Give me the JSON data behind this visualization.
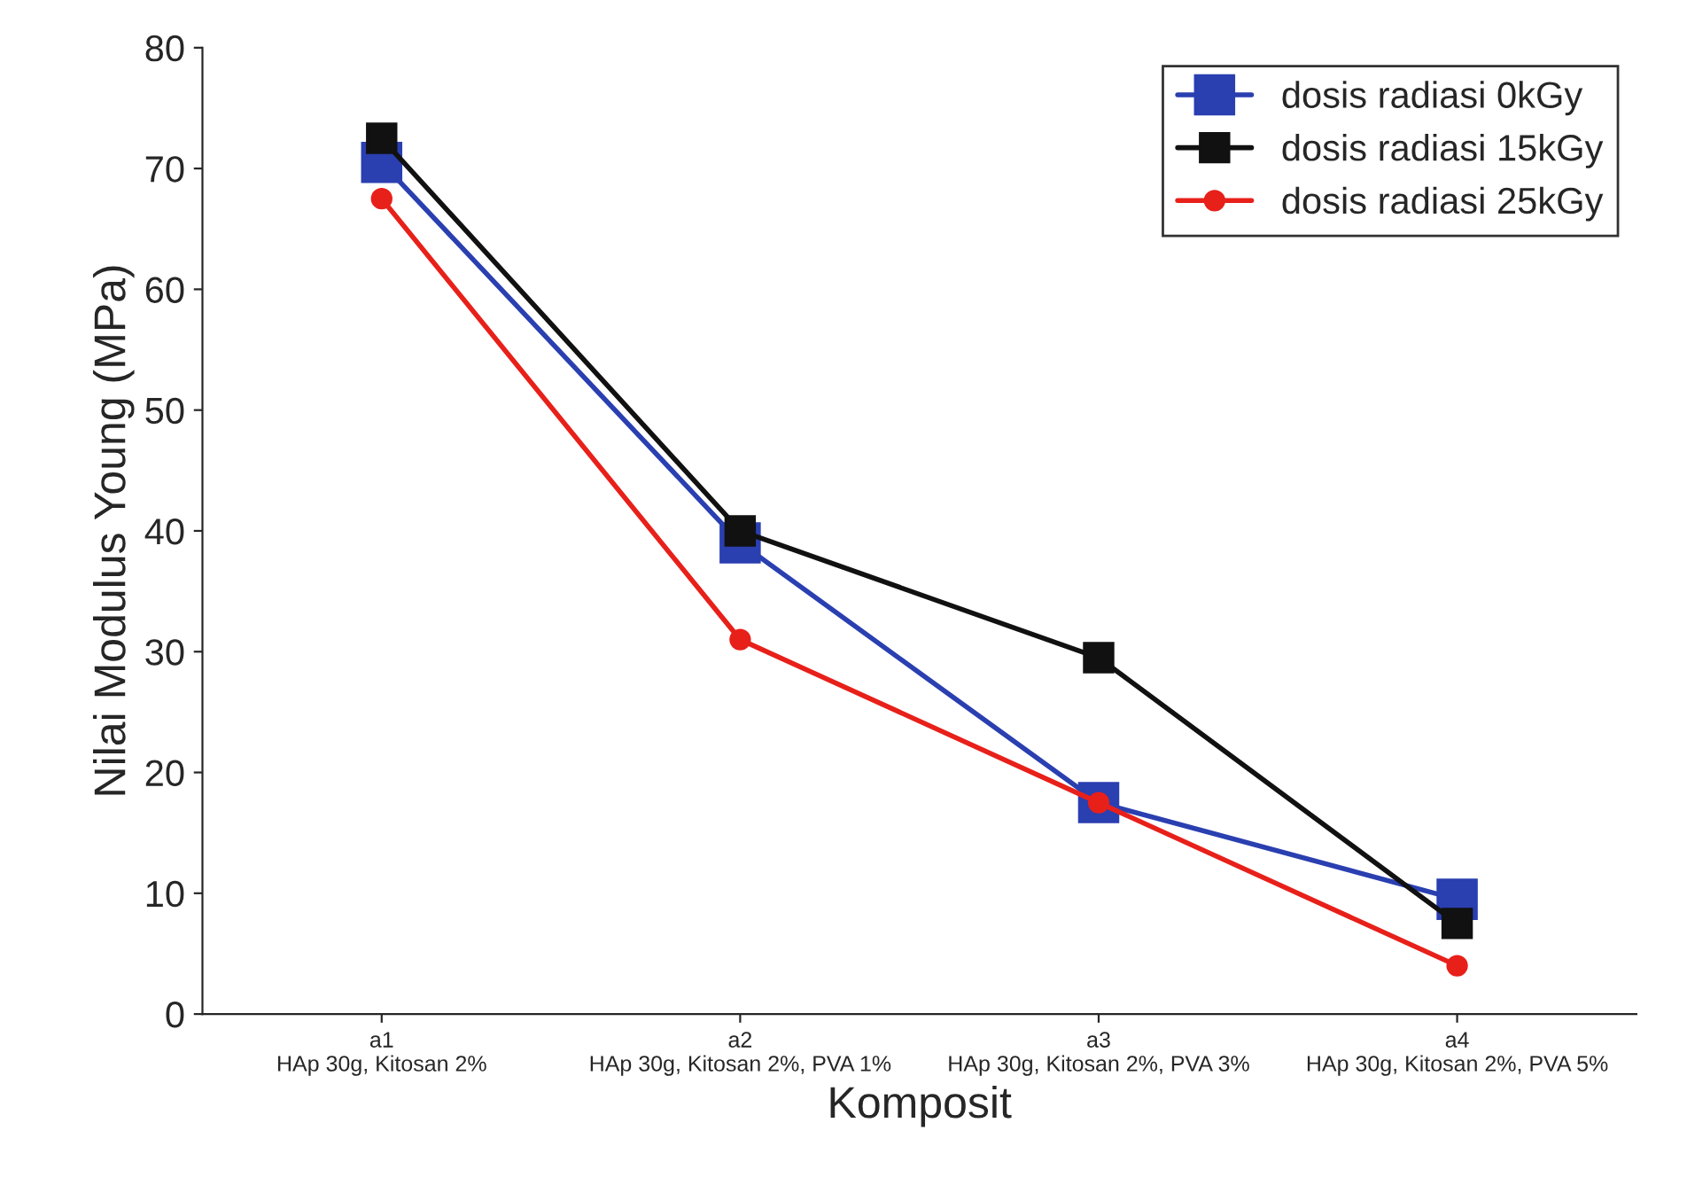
{
  "chart_data": {
    "type": "line",
    "xlabel": "Komposit",
    "ylabel": "Nilai Modulus Young (MPa)",
    "categories": [
      "a1\nHAp 30g, Kitosan 2%",
      "a2\nHAp 30g, Kitosan 2%, PVA 1%",
      "a3\nHAp 30g, Kitosan 2%, PVA 3%",
      "a4\nHAp 30g, Kitosan 2%, PVA 5%"
    ],
    "series": [
      {
        "name": "dosis radiasi 0kGy",
        "color": "#2a3fb0",
        "marker": "square",
        "values": [
          70.5,
          39,
          17.5,
          9.5
        ]
      },
      {
        "name": "dosis radiasi 15kGy",
        "color": "#111111",
        "marker": "square",
        "values": [
          72.5,
          40,
          29.5,
          7.5
        ]
      },
      {
        "name": "dosis radiasi 25kGy",
        "color": "#e8201a",
        "marker": "circle",
        "values": [
          67.5,
          31,
          17.5,
          4
        ]
      }
    ],
    "ylim": [
      0,
      80
    ],
    "yticks": [
      0,
      10,
      20,
      30,
      40,
      50,
      60,
      70,
      80
    ],
    "grid": false,
    "legend": "top right",
    "line_style": "solid"
  }
}
